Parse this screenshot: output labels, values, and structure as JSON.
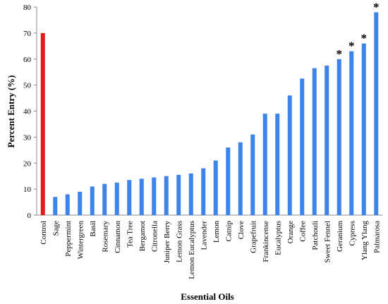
{
  "chart_data": {
    "type": "bar",
    "xlabel": "Essential Oils",
    "ylabel": "Percent Entry (%)",
    "ylim": [
      0,
      80
    ],
    "yticks": [
      0,
      10,
      20,
      30,
      40,
      50,
      60,
      70,
      80
    ],
    "grid": false,
    "categories": [
      "Control",
      "Sage",
      "Peppermint",
      "Wintergreen",
      "Basil",
      "Rosemary",
      "Cinnamon",
      "Tea Tree",
      "Bergamot",
      "Citronella",
      "Juniper Berry",
      "Lemon Grass",
      "Lemon Eucalyptus",
      "Lavender",
      "Lemon",
      "Catnip",
      "Clove",
      "Grapefruit",
      "Frankincense",
      "Eucalyptus",
      "Orange",
      "Coffee",
      "Patchouli",
      "Sweet Fennel",
      "Geranium",
      "Cypress",
      "Ylang Ylang",
      "Palmarosa"
    ],
    "values": [
      70,
      7,
      8,
      9,
      11,
      12,
      12.5,
      13.5,
      14,
      14.5,
      15,
      15.5,
      16,
      18,
      21,
      26,
      28,
      31,
      39,
      39,
      46,
      52.5,
      56.5,
      57.5,
      60,
      63,
      66,
      78
    ],
    "colors": {
      "control": "#dd1e1e",
      "treatment": "#3c83ec"
    },
    "significance_marker": "*",
    "significant": [
      "Geranium",
      "Cypress",
      "Ylang Ylang",
      "Palmarosa"
    ]
  }
}
